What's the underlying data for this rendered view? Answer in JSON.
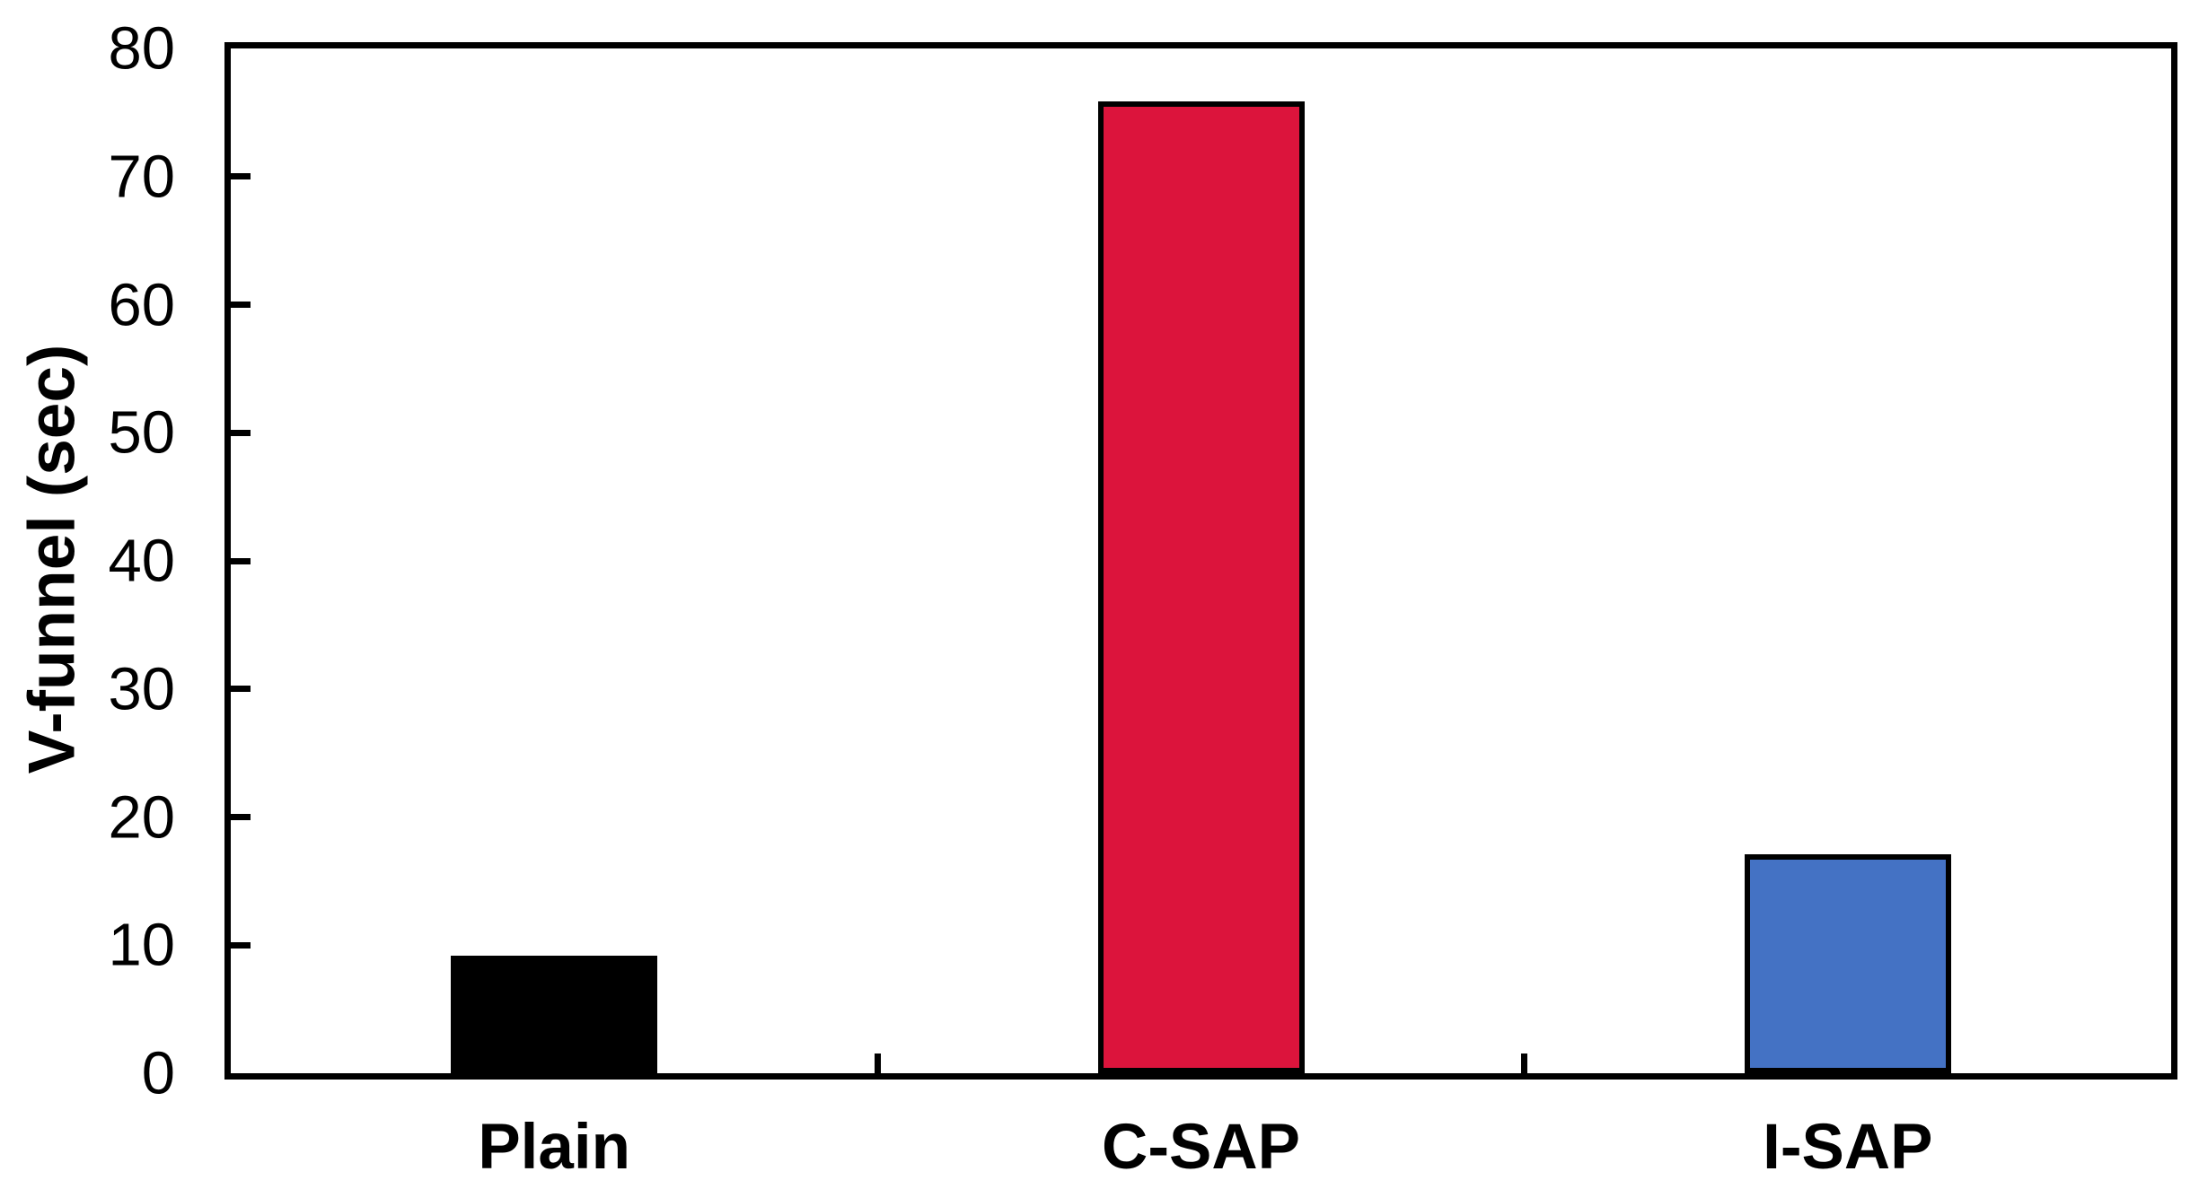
{
  "chart_data": {
    "type": "bar",
    "title": "",
    "ylabel": "V-funnel (sec)",
    "xlabel": "",
    "categories": [
      "Plain",
      "C-SAP",
      "I-SAP"
    ],
    "values": [
      9.2,
      75.9,
      17.1
    ],
    "bar_colors": [
      "#000000",
      "#DC143C",
      "#4472C4"
    ],
    "bar_border_color": "#000000",
    "axis_color": "#000000",
    "background_color": "#FFFFFF",
    "ylim": [
      0,
      80
    ],
    "yticks": [
      0,
      10,
      20,
      30,
      40,
      50,
      60,
      70,
      80
    ],
    "grid": false,
    "legend": false,
    "tick_style": "inside",
    "x_boundary_ticks": true
  }
}
